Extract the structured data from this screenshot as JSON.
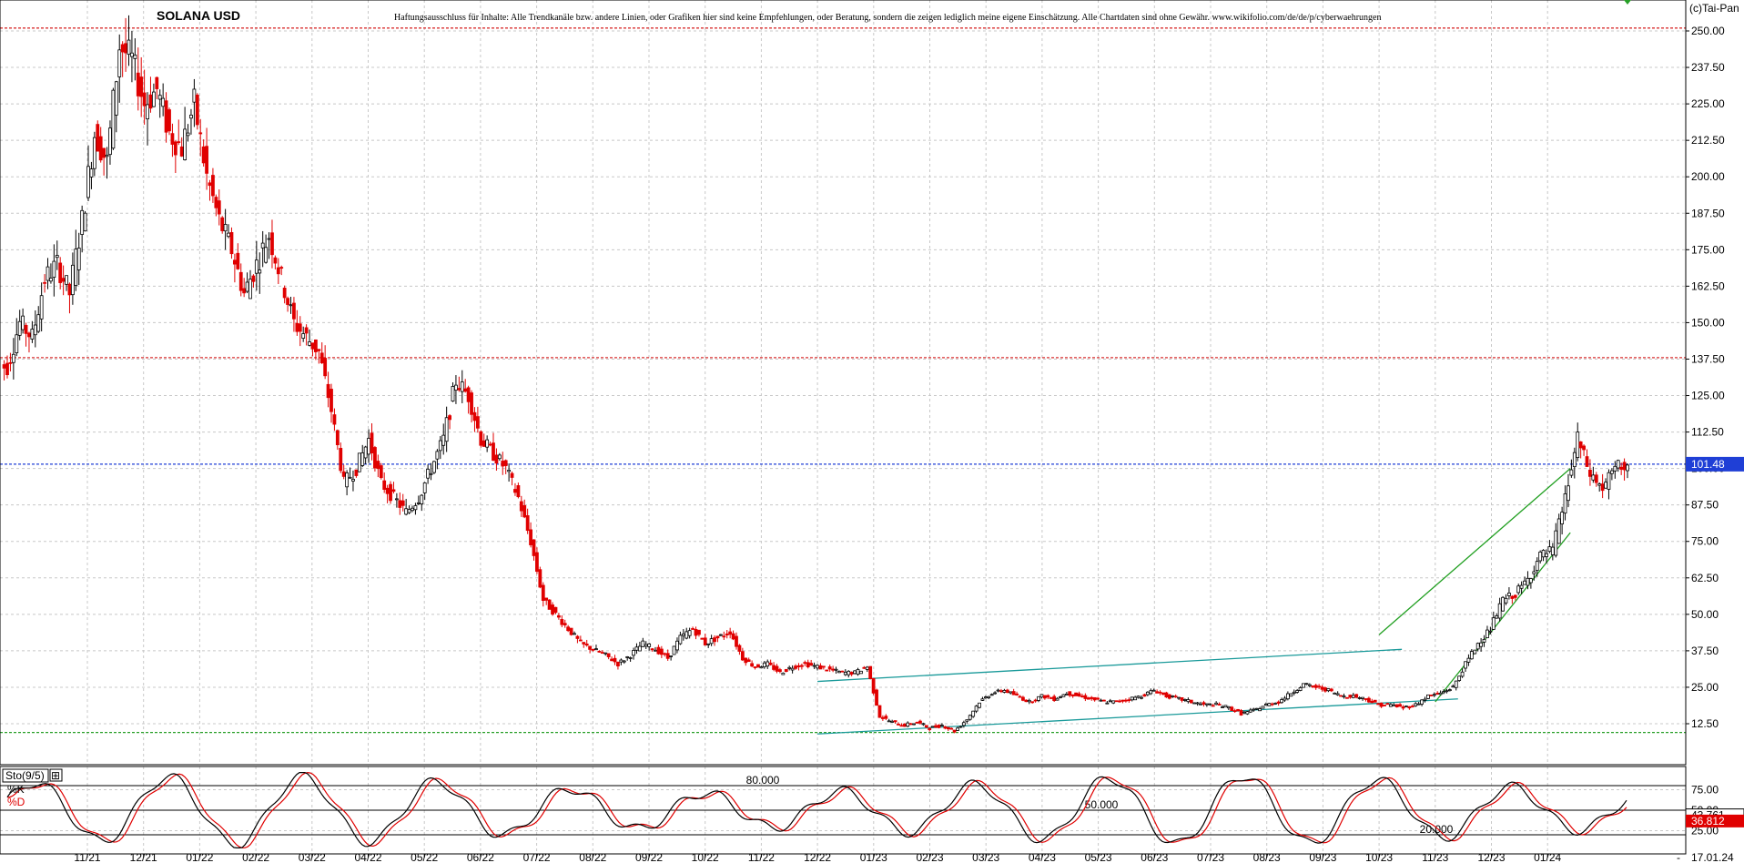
{
  "chart_data": [
    {
      "type": "candlestick",
      "title": "SOLANA USD",
      "subtitle": "Haftungsausschluss für Inhalte: Alle Trendkanäle bzw. andere Linien, oder Grafiken hier sind keine Empfehlungen, oder Beratung, sondern die zeigen lediglich meine eigene Einschätzung. Alle Chartdaten sind ohne Gewähr. www.wikifolio.com/de/de/p/cyberwaehrungen",
      "credit": "(c)Tai-Pan",
      "ylim": [
        0,
        255
      ],
      "y_ticks": [
        12.5,
        25,
        37.5,
        50,
        62.5,
        75,
        87.5,
        100,
        112.5,
        125,
        137.5,
        150,
        162.5,
        175,
        187.5,
        200,
        212.5,
        225,
        237.5,
        250
      ],
      "y_tick_labels": [
        "12.50",
        "25.00",
        "37.50",
        "50.00",
        "62.50",
        "75.00",
        "87.50",
        "100.00",
        "112.50",
        "125.00",
        "137.50",
        "150.00",
        "162.50",
        "175.00",
        "187.50",
        "200.00",
        "212.50",
        "225.00",
        "237.50",
        "250.00"
      ],
      "x_tick_labels": [
        "11/21",
        "12/21",
        "01/22",
        "02/22",
        "03/22",
        "04/22",
        "05/22",
        "06/22",
        "07/22",
        "08/22",
        "09/22",
        "10/22",
        "11/22",
        "12/22",
        "01/23",
        "02/23",
        "03/23",
        "04/23",
        "05/23",
        "06/23",
        "07/23",
        "08/23",
        "09/23",
        "10/23",
        "11/23",
        "12/23",
        "01/24"
      ],
      "last_date_label": "17.01.24",
      "last_price": 101.48,
      "last_price_label": "101.48",
      "horizontal_levels": [
        {
          "value": 251,
          "color": "#d93030"
        },
        {
          "value": 138,
          "color": "#d93030"
        },
        {
          "value": 101.48,
          "color": "#1f3fd6"
        },
        {
          "value": 9.5,
          "color": "#28a028"
        }
      ],
      "weekly_closes": [
        135,
        150,
        145,
        165,
        170,
        160,
        185,
        215,
        205,
        245,
        240,
        225,
        230,
        215,
        210,
        225,
        200,
        185,
        175,
        160,
        170,
        180,
        165,
        150,
        145,
        140,
        120,
        95,
        100,
        110,
        95,
        90,
        85,
        90,
        100,
        110,
        130,
        125,
        110,
        105,
        100,
        90,
        75,
        55,
        50,
        45,
        40,
        38,
        36,
        33,
        36,
        40,
        38,
        35,
        42,
        45,
        40,
        42,
        44,
        35,
        32,
        33,
        30,
        32,
        33,
        32,
        31,
        30,
        30,
        32,
        15,
        13,
        12,
        13,
        11,
        12,
        10,
        14,
        20,
        23,
        24,
        22,
        20,
        22,
        21,
        23,
        22,
        21,
        20,
        20,
        21,
        22,
        24,
        22,
        21,
        20,
        19,
        19,
        18,
        16,
        17,
        19,
        20,
        23,
        26,
        25,
        24,
        22,
        22,
        21,
        19,
        19,
        18,
        19,
        22,
        23,
        25,
        33,
        40,
        45,
        55,
        57,
        62,
        70,
        72,
        90,
        110,
        98,
        93,
        100,
        101.48
      ],
      "trend_lines": [
        {
          "from": [
            "12/22",
            27
          ],
          "to": [
            "10/23",
            38
          ]
        },
        {
          "from": [
            "12/22",
            9
          ],
          "to": [
            "11/23",
            21
          ]
        },
        {
          "from": [
            "10/23",
            43
          ],
          "to": [
            "01/24",
            100
          ]
        },
        {
          "from": [
            "11/23",
            20
          ],
          "to": [
            "01/24",
            78
          ]
        }
      ]
    },
    {
      "type": "line",
      "title": "Sto(9/5)",
      "series": [
        {
          "name": "%K",
          "color": "#000000",
          "last_value": 43.761
        },
        {
          "name": "%D",
          "color": "#e00000",
          "last_value": 36.812
        }
      ],
      "last_value_labels": [
        "43.761",
        "36.812"
      ],
      "levels": [
        {
          "value": 80,
          "label": "80.000"
        },
        {
          "value": 50,
          "label": "50.000"
        },
        {
          "value": 20,
          "label": "20.000"
        }
      ],
      "y_ticks": [
        25,
        50,
        75
      ],
      "y_tick_labels": [
        "25.00",
        "50.00",
        "75.00"
      ],
      "ylim": [
        0,
        100
      ]
    }
  ],
  "ui": {
    "expand_button": "⊞"
  }
}
